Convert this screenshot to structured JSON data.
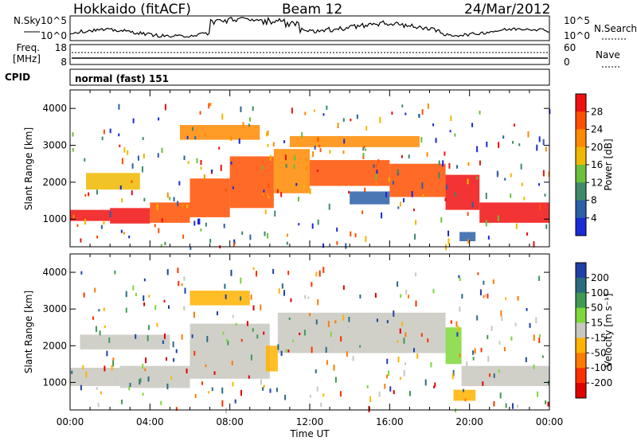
{
  "header": {
    "station": "Hokkaido (fitACF)",
    "beam": "Beam 12",
    "date": "24/Mar/2012"
  },
  "noise_panel": {
    "left_label": "N.Sky",
    "right_label": "N.Search",
    "tick_top": "10^5",
    "tick_bottom": "10^0"
  },
  "freq_panel": {
    "left_label_top": "Freq.",
    "left_label_unit": "[MHz]",
    "right_label": "Nave",
    "left_ticks": [
      "18",
      "8"
    ],
    "right_ticks": [
      "60",
      "0"
    ]
  },
  "cpid_panel": {
    "label": "CPID",
    "text": "normal (fast) 151"
  },
  "chart_data": [
    {
      "type": "heatmap",
      "name": "power",
      "ylabel": "Slant Range [km]",
      "ylim": [
        250,
        4500
      ],
      "yticks": [
        1000,
        2000,
        3000,
        4000
      ],
      "xlim": [
        0,
        24
      ],
      "colorbar": {
        "label": "Power [dB]",
        "ticks": [
          "4",
          "8",
          "12",
          "16",
          "20",
          "24",
          "28"
        ],
        "colors": [
          "#1b2ad6",
          "#2b5fa8",
          "#3f8a6a",
          "#6bbf3a",
          "#f0b800",
          "#ff8a00",
          "#ff5000",
          "#f01010"
        ]
      },
      "bands": [
        {
          "x0": 0.0,
          "x1": 2.0,
          "ylo": 950,
          "yhi": 1250,
          "level": 7
        },
        {
          "x0": 2.0,
          "x1": 4.0,
          "ylo": 880,
          "yhi": 1300,
          "level": 7
        },
        {
          "x0": 4.0,
          "x1": 6.0,
          "ylo": 900,
          "yhi": 1450,
          "level": 6
        },
        {
          "x0": 6.0,
          "x1": 8.0,
          "ylo": 1050,
          "yhi": 2100,
          "level": 6
        },
        {
          "x0": 8.0,
          "x1": 10.2,
          "ylo": 1300,
          "yhi": 2700,
          "level": 6
        },
        {
          "x0": 10.2,
          "x1": 12.0,
          "ylo": 1700,
          "yhi": 2900,
          "level": 5
        },
        {
          "x0": 12.0,
          "x1": 16.0,
          "ylo": 1900,
          "yhi": 2600,
          "level": 6
        },
        {
          "x0": 16.0,
          "x1": 18.8,
          "ylo": 1600,
          "yhi": 2500,
          "level": 6
        },
        {
          "x0": 18.8,
          "x1": 20.5,
          "ylo": 1250,
          "yhi": 2200,
          "level": 7
        },
        {
          "x0": 20.5,
          "x1": 24.0,
          "ylo": 900,
          "yhi": 1450,
          "level": 7
        },
        {
          "x0": 0.8,
          "x1": 3.5,
          "ylo": 1800,
          "yhi": 2250,
          "level": 4
        },
        {
          "x0": 5.5,
          "x1": 9.5,
          "ylo": 3150,
          "yhi": 3550,
          "level": 5
        },
        {
          "x0": 11.0,
          "x1": 17.5,
          "ylo": 2950,
          "yhi": 3250,
          "level": 5
        },
        {
          "x0": 14.0,
          "x1": 16.0,
          "ylo": 1400,
          "yhi": 1750,
          "level": 1
        },
        {
          "x0": 19.5,
          "x1": 20.3,
          "ylo": 400,
          "yhi": 650,
          "level": 1
        }
      ]
    },
    {
      "type": "heatmap",
      "name": "velocity",
      "ylabel": "Slant Range [km]",
      "ylim": [
        250,
        4500
      ],
      "yticks": [
        1000,
        2000,
        3000,
        4000
      ],
      "xlim": [
        0,
        24
      ],
      "colorbar": {
        "label": "Velocity [m s⁻¹]",
        "ticks": [
          "200",
          "100",
          "50",
          "15",
          "-15",
          "-50",
          "-100",
          "-200"
        ],
        "colors": [
          "#1f3fa8",
          "#2a6b80",
          "#3f9a55",
          "#7fd83a",
          "#c8c8c0",
          "#ffb200",
          "#ff7a00",
          "#ff3000",
          "#e00000"
        ]
      },
      "bands": [
        {
          "x0": 0.0,
          "x1": 2.5,
          "ylo": 900,
          "yhi": 1400,
          "level": 4
        },
        {
          "x0": 2.5,
          "x1": 6.0,
          "ylo": 850,
          "yhi": 1450,
          "level": 4
        },
        {
          "x0": 6.0,
          "x1": 10.0,
          "ylo": 1100,
          "yhi": 2600,
          "level": 4
        },
        {
          "x0": 9.8,
          "x1": 10.4,
          "ylo": 1300,
          "yhi": 2000,
          "level": 5
        },
        {
          "x0": 10.4,
          "x1": 18.8,
          "ylo": 1800,
          "yhi": 2900,
          "level": 4
        },
        {
          "x0": 18.8,
          "x1": 19.6,
          "ylo": 1500,
          "yhi": 2500,
          "level": 3
        },
        {
          "x0": 19.6,
          "x1": 24.0,
          "ylo": 900,
          "yhi": 1450,
          "level": 4
        },
        {
          "x0": 0.5,
          "x1": 5.0,
          "ylo": 1900,
          "yhi": 2300,
          "level": 4
        },
        {
          "x0": 6.0,
          "x1": 9.0,
          "ylo": 3100,
          "yhi": 3500,
          "level": 5
        },
        {
          "x0": 19.2,
          "x1": 20.3,
          "ylo": 500,
          "yhi": 800,
          "level": 5
        }
      ]
    }
  ],
  "x_axis": {
    "label": "Time UT",
    "ticks": [
      "00:00",
      "04:00",
      "08:00",
      "12:00",
      "16:00",
      "20:00",
      "00:00"
    ]
  }
}
